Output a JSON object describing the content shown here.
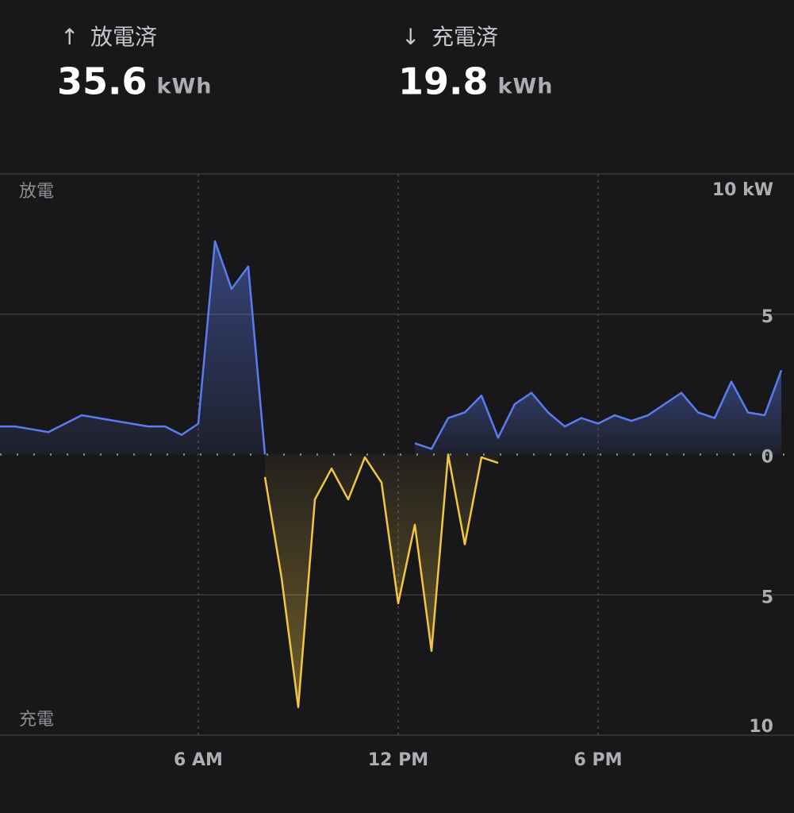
{
  "summary": [
    {
      "arrow": "↑",
      "label": "放電済",
      "value": 35.6,
      "unit": "kWh"
    },
    {
      "arrow": "↓",
      "label": "充電済",
      "value": 19.8,
      "unit": "kWh"
    }
  ],
  "chart_data": {
    "type": "area",
    "x": [
      0,
      0.5,
      1,
      1.5,
      2,
      2.5,
      3,
      3.5,
      4,
      4.5,
      5,
      5.5,
      6,
      6.5,
      7,
      7.5,
      8,
      8.5,
      9,
      9.5,
      10,
      10.5,
      11,
      11.5,
      12,
      12.5,
      13,
      13.5,
      14,
      14.5,
      15,
      15.5,
      16,
      16.5,
      17,
      17.5,
      18,
      18.5,
      19,
      19.5,
      20,
      20.5,
      21,
      21.5,
      22,
      22.5,
      23,
      23.5
    ],
    "series": [
      {
        "name": "放電",
        "color": "#5b7cf0",
        "values": [
          1.0,
          1.0,
          0.9,
          0.8,
          1.1,
          1.4,
          1.3,
          1.2,
          1.1,
          1.0,
          1.0,
          0.7,
          1.1,
          7.6,
          5.9,
          6.7,
          0,
          null,
          null,
          null,
          null,
          null,
          null,
          null,
          null,
          0.4,
          0.2,
          1.3,
          1.5,
          2.1,
          0.6,
          1.8,
          2.2,
          1.5,
          1.0,
          1.3,
          1.1,
          1.4,
          1.2,
          1.4,
          1.8,
          2.2,
          1.5,
          1.3,
          2.6,
          1.5,
          1.4,
          3.0
        ]
      },
      {
        "name": "充電",
        "color": "#f2c644",
        "values": [
          null,
          null,
          null,
          null,
          null,
          null,
          null,
          null,
          null,
          null,
          null,
          null,
          null,
          null,
          null,
          null,
          -0.8,
          -4.4,
          -9.0,
          -1.6,
          -0.5,
          -1.6,
          -0.1,
          -1.0,
          -5.3,
          -2.5,
          -7.0,
          0,
          -3.2,
          -0.1,
          -0.3,
          null,
          null,
          null,
          null,
          null,
          null,
          null,
          null,
          null,
          null,
          null,
          null,
          null,
          null,
          null,
          null,
          null
        ]
      }
    ],
    "xlim": [
      0,
      24
    ],
    "xticks": [
      {
        "value": 6,
        "label": "6 AM"
      },
      {
        "value": 12,
        "label": "12 PM"
      },
      {
        "value": 18,
        "label": "6 PM"
      }
    ],
    "ylim": [
      -10,
      10
    ],
    "yticks": [
      {
        "value": 10,
        "label": "10 kW"
      },
      5,
      0,
      {
        "value": -5,
        "label": "5"
      },
      {
        "value": -10,
        "label": "10"
      }
    ],
    "grid": true
  }
}
